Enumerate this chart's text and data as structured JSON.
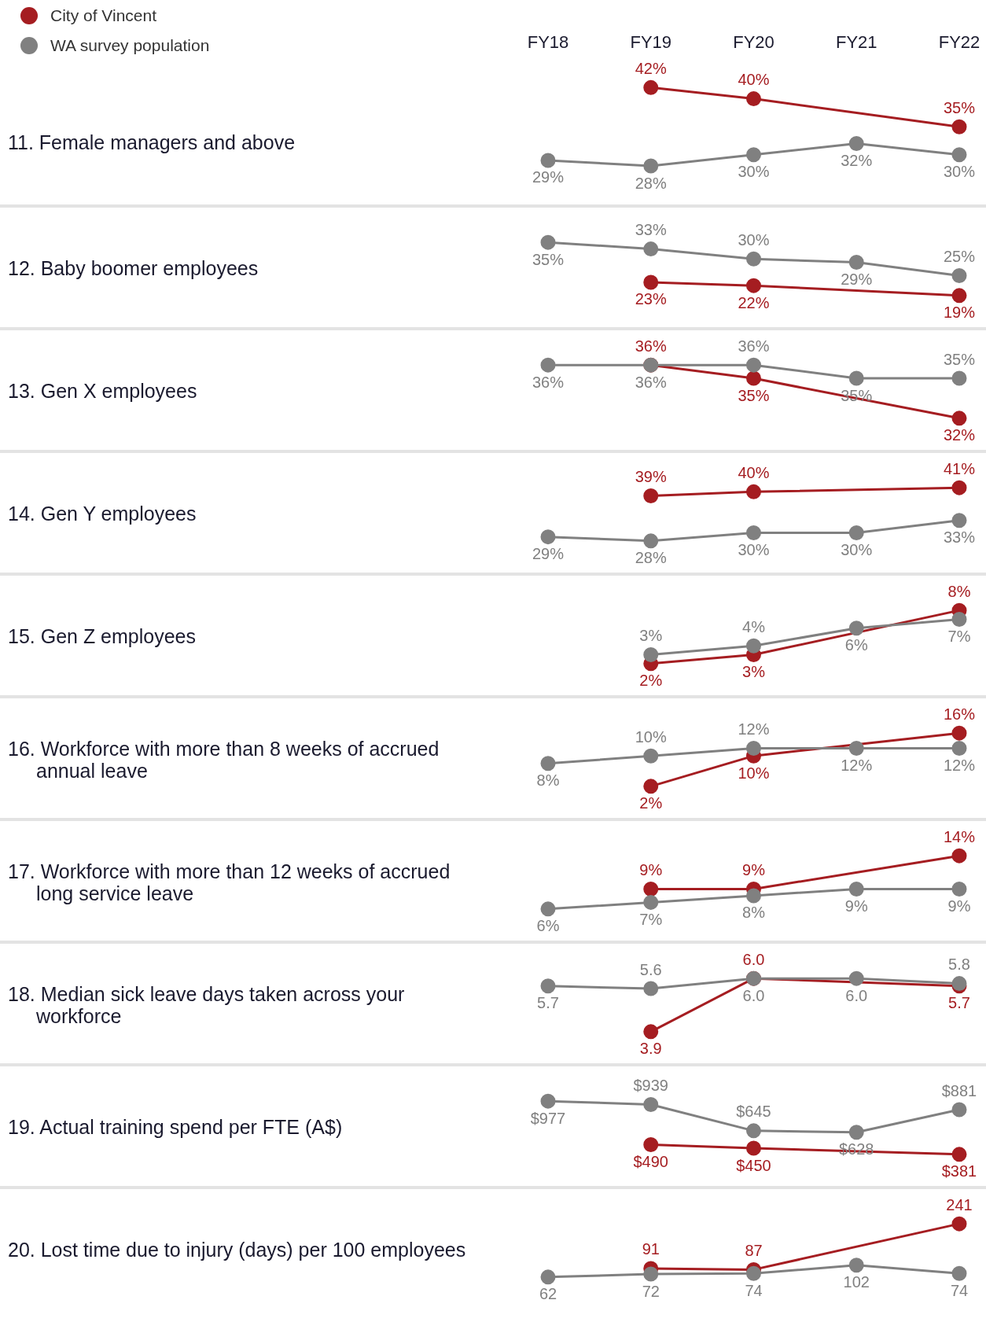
{
  "chart_data": [
    {
      "type": "line",
      "ylabel": "11. Female managers and above",
      "categories": [
        "FY18",
        "FY19",
        "FY20",
        "FY21",
        "FY22"
      ],
      "legend": "top left",
      "tick_labels": "x",
      "marker": "circle",
      "line_style": "solid",
      "grid": false,
      "series": [
        {
          "name": "City of Vincent",
          "color": "#a51d21",
          "values": [
            null,
            42,
            40,
            null,
            35
          ],
          "value_labels": [
            null,
            "42%",
            "40%",
            null,
            "35%"
          ]
        },
        {
          "name": "WA survey population",
          "color": "#808080",
          "values": [
            29,
            28,
            30,
            32,
            30
          ],
          "value_labels": [
            "29%",
            "28%",
            "30%",
            "32%",
            "30%"
          ]
        }
      ]
    },
    {
      "type": "line",
      "ylabel": "12. Baby boomer employees",
      "categories": [
        null,
        null,
        null,
        null,
        null
      ],
      "tick_labels": false,
      "marker": "circle",
      "line_style": "solid",
      "grid": false,
      "series": [
        {
          "color": "#a51d21",
          "values": [
            null,
            23,
            22,
            null,
            19
          ],
          "value_labels": [
            null,
            "23%",
            "22%",
            null,
            "19%"
          ]
        },
        {
          "color": "#808080",
          "values": [
            35,
            33,
            30,
            29,
            25
          ],
          "value_labels": [
            "35%",
            "33%",
            "30%",
            "29%",
            "25%"
          ]
        }
      ]
    },
    {
      "type": "line",
      "ylabel": "13. Gen X employees",
      "categories": [
        null,
        null,
        null,
        null,
        null
      ],
      "tick_labels": false,
      "marker": "circle",
      "line_style": "solid",
      "grid": false,
      "series": [
        {
          "color": "#a51d21",
          "values": [
            null,
            36,
            35,
            null,
            32
          ],
          "value_labels": [
            null,
            "36%",
            "35%",
            null,
            "32%"
          ]
        },
        {
          "color": "#808080",
          "values": [
            36,
            36,
            36,
            35,
            35
          ],
          "value_labels": [
            "36%",
            "36%",
            "36%",
            "35%",
            "35%"
          ]
        }
      ]
    },
    {
      "type": "line",
      "ylabel": "14. Gen Y employees",
      "categories": [
        null,
        null,
        null,
        null,
        null
      ],
      "tick_labels": false,
      "marker": "circle",
      "line_style": "solid",
      "grid": false,
      "series": [
        {
          "color": "#a51d21",
          "values": [
            null,
            39,
            40,
            null,
            41
          ],
          "value_labels": [
            null,
            "39%",
            "40%",
            null,
            "41%"
          ]
        },
        {
          "color": "#808080",
          "values": [
            29,
            28,
            30,
            30,
            33
          ],
          "value_labels": [
            "29%",
            "28%",
            "30%",
            "30%",
            "33%"
          ]
        }
      ]
    },
    {
      "type": "line",
      "ylabel": "15. Gen Z employees",
      "categories": [
        null,
        null,
        null,
        null,
        null
      ],
      "tick_labels": false,
      "marker": "circle",
      "line_style": "solid",
      "grid": false,
      "series": [
        {
          "color": "#a51d21",
          "values": [
            null,
            2,
            3,
            null,
            8
          ],
          "value_labels": [
            null,
            "2%",
            "3%",
            null,
            "8%"
          ]
        },
        {
          "color": "#808080",
          "values": [
            null,
            3,
            4,
            6,
            7
          ],
          "value_labels": [
            null,
            "3%",
            "4%",
            "6%",
            "7%"
          ]
        }
      ]
    },
    {
      "type": "line",
      "ylabel": "16. Workforce with more than 8 weeks of accrued annual leave",
      "categories": [
        null,
        null,
        null,
        null,
        null
      ],
      "tick_labels": false,
      "marker": "circle",
      "line_style": "solid",
      "grid": false,
      "series": [
        {
          "color": "#a51d21",
          "values": [
            null,
            2,
            10,
            null,
            16
          ],
          "value_labels": [
            null,
            "2%",
            "10%",
            null,
            "16%"
          ]
        },
        {
          "color": "#808080",
          "values": [
            8,
            10,
            12,
            12,
            12
          ],
          "value_labels": [
            "8%",
            "10%",
            "12%",
            "12%",
            "12%"
          ]
        }
      ]
    },
    {
      "type": "line",
      "ylabel": "17. Workforce with more than 12 weeks of accrued long service leave",
      "categories": [
        null,
        null,
        null,
        null,
        null
      ],
      "tick_labels": false,
      "marker": "circle",
      "line_style": "solid",
      "grid": false,
      "series": [
        {
          "color": "#a51d21",
          "values": [
            null,
            9,
            9,
            null,
            14
          ],
          "value_labels": [
            null,
            "9%",
            "9%",
            null,
            "14%"
          ]
        },
        {
          "color": "#808080",
          "values": [
            6,
            7,
            8,
            9,
            9
          ],
          "value_labels": [
            "6%",
            "7%",
            "8%",
            "9%",
            "9%"
          ]
        }
      ]
    },
    {
      "type": "line",
      "ylabel": "18. Median sick leave days taken across your workforce",
      "categories": [
        null,
        null,
        null,
        null,
        null
      ],
      "tick_labels": false,
      "marker": "circle",
      "line_style": "solid",
      "grid": false,
      "series": [
        {
          "color": "#a51d21",
          "values": [
            null,
            3.9,
            6.0,
            null,
            5.7
          ],
          "value_labels": [
            null,
            "3.9",
            "6.0",
            null,
            "5.7"
          ]
        },
        {
          "color": "#808080",
          "values": [
            5.7,
            5.6,
            6.0,
            6.0,
            5.8
          ],
          "value_labels": [
            "5.7",
            "5.6",
            "6.0",
            "6.0",
            "5.8"
          ]
        }
      ]
    },
    {
      "type": "line",
      "ylabel": "19. Actual training spend per FTE (A$)",
      "categories": [
        null,
        null,
        null,
        null,
        null
      ],
      "tick_labels": false,
      "marker": "circle",
      "line_style": "solid",
      "grid": false,
      "series": [
        {
          "color": "#a51d21",
          "values": [
            null,
            490,
            450,
            null,
            381
          ],
          "value_labels": [
            null,
            "$490",
            "$450",
            null,
            "$381"
          ]
        },
        {
          "color": "#808080",
          "values": [
            977,
            939,
            645,
            628,
            881
          ],
          "value_labels": [
            "$977",
            "$939",
            "$645",
            "$628",
            "$881"
          ]
        }
      ]
    },
    {
      "type": "line",
      "ylabel": "20. Lost time due to injury (days) per 100 employees",
      "categories": [
        null,
        null,
        null,
        null,
        null
      ],
      "tick_labels": false,
      "marker": "circle",
      "line_style": "solid",
      "grid": false,
      "series": [
        {
          "color": "#a51d21",
          "values": [
            null,
            91,
            87,
            null,
            241
          ],
          "value_labels": [
            null,
            "91",
            "87",
            null,
            "241"
          ]
        },
        {
          "color": "#808080",
          "values": [
            62,
            72,
            74,
            102,
            74
          ],
          "value_labels": [
            "62",
            "72",
            "74",
            "102",
            "74"
          ]
        }
      ]
    }
  ]
}
